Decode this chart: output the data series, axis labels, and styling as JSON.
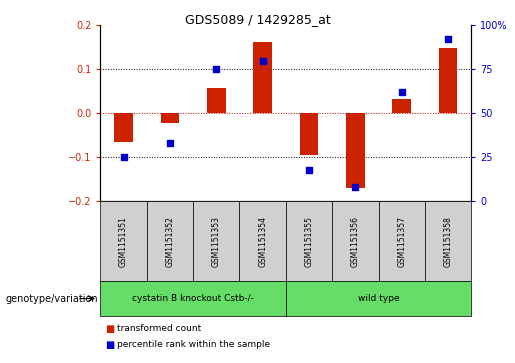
{
  "title": "GDS5089 / 1429285_at",
  "samples": [
    "GSM1151351",
    "GSM1151352",
    "GSM1151353",
    "GSM1151354",
    "GSM1151355",
    "GSM1151356",
    "GSM1151357",
    "GSM1151358"
  ],
  "red_values": [
    -0.065,
    -0.022,
    0.058,
    0.163,
    -0.095,
    -0.17,
    0.032,
    0.148
  ],
  "blue_pct": [
    25,
    33,
    75,
    80,
    18,
    8,
    62,
    92
  ],
  "ylim_left": [
    -0.2,
    0.2
  ],
  "ylim_right": [
    0,
    100
  ],
  "yticks_left": [
    -0.2,
    -0.1,
    0.0,
    0.1,
    0.2
  ],
  "yticks_right": [
    0,
    25,
    50,
    75,
    100
  ],
  "group1_label": "cystatin B knockout Cstb-/-",
  "group2_label": "wild type",
  "group1_count": 4,
  "group2_count": 4,
  "legend_red": "transformed count",
  "legend_blue": "percentile rank within the sample",
  "genotype_label": "genotype/variation",
  "bar_color": "#cc2200",
  "dot_color": "#0000cc",
  "group_color": "#66dd66",
  "sample_box_color": "#d0d0d0",
  "hline0_color": "#cc0000",
  "hline_color": "#000000"
}
